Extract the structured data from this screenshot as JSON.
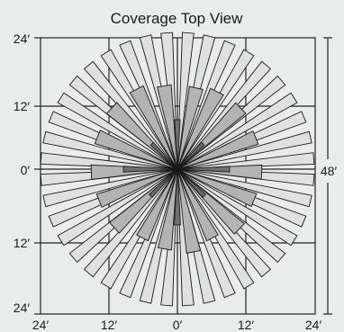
{
  "title": "Coverage Top View",
  "axis": {
    "left_ticks": [
      "24′",
      "12′",
      "0′",
      "12′",
      "24′"
    ],
    "bottom_ticks": [
      "24′",
      "12′",
      "0′",
      "12′",
      "24′"
    ]
  },
  "dimension_label": "48′",
  "wedges": {
    "long_zone_count": 40,
    "long_zone_fill": "#e0e0e0",
    "mid_zone_fill": "#b3b3b3",
    "inner_zone_fill": "#6e6e6e",
    "stroke": "#1a1a1a"
  },
  "colors": {
    "background": "#eaebeb",
    "grid": "#222222"
  }
}
